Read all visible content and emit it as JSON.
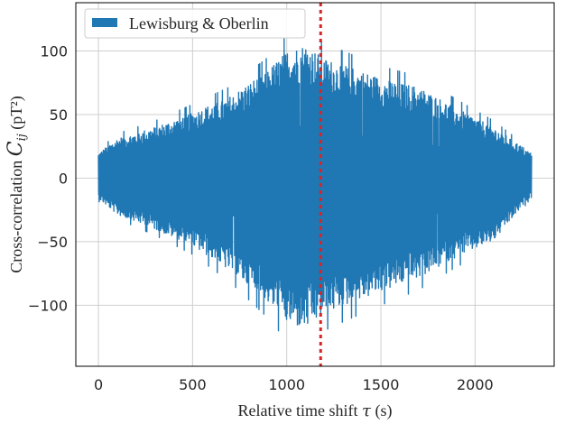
{
  "chart_data": {
    "type": "line",
    "title": "",
    "xlabel": {
      "text": "Relative time shift",
      "symbol": "τ",
      "unit": "(s)"
    },
    "ylabel": {
      "text": "Cross-correlation",
      "symbol": "C",
      "subscript": "ij",
      "unit": "(pT²)"
    },
    "xlim": [
      -120,
      2420
    ],
    "ylim": [
      -148,
      138
    ],
    "xticks": [
      0,
      500,
      1000,
      1500,
      2000
    ],
    "yticks": [
      -100,
      -50,
      0,
      50,
      100
    ],
    "xtick_labels": [
      "0",
      "500",
      "1000",
      "1500",
      "2000"
    ],
    "ytick_labels": [
      "−100",
      "−50",
      "0",
      "50",
      "100"
    ],
    "grid": true,
    "legend_position": "top-left",
    "series": [
      {
        "name": "Lewisburg & Oberlin",
        "color": "#1f77b4",
        "x_start": 0,
        "x_end": 2300,
        "envelope_x": [
          0,
          100,
          300,
          500,
          700,
          900,
          1000,
          1100,
          1200,
          1300,
          1500,
          1700,
          1900,
          2100,
          2300
        ],
        "envelope_upper": [
          22,
          35,
          45,
          58,
          72,
          95,
          112,
          118,
          105,
          100,
          88,
          80,
          62,
          45,
          22
        ],
        "envelope_lower": [
          -18,
          -32,
          -45,
          -60,
          -82,
          -110,
          -128,
          -133,
          -120,
          -113,
          -100,
          -88,
          -70,
          -55,
          -15
        ]
      }
    ],
    "vertical_line": {
      "x": 1180,
      "color": "#d62728",
      "style": "dotted"
    }
  }
}
